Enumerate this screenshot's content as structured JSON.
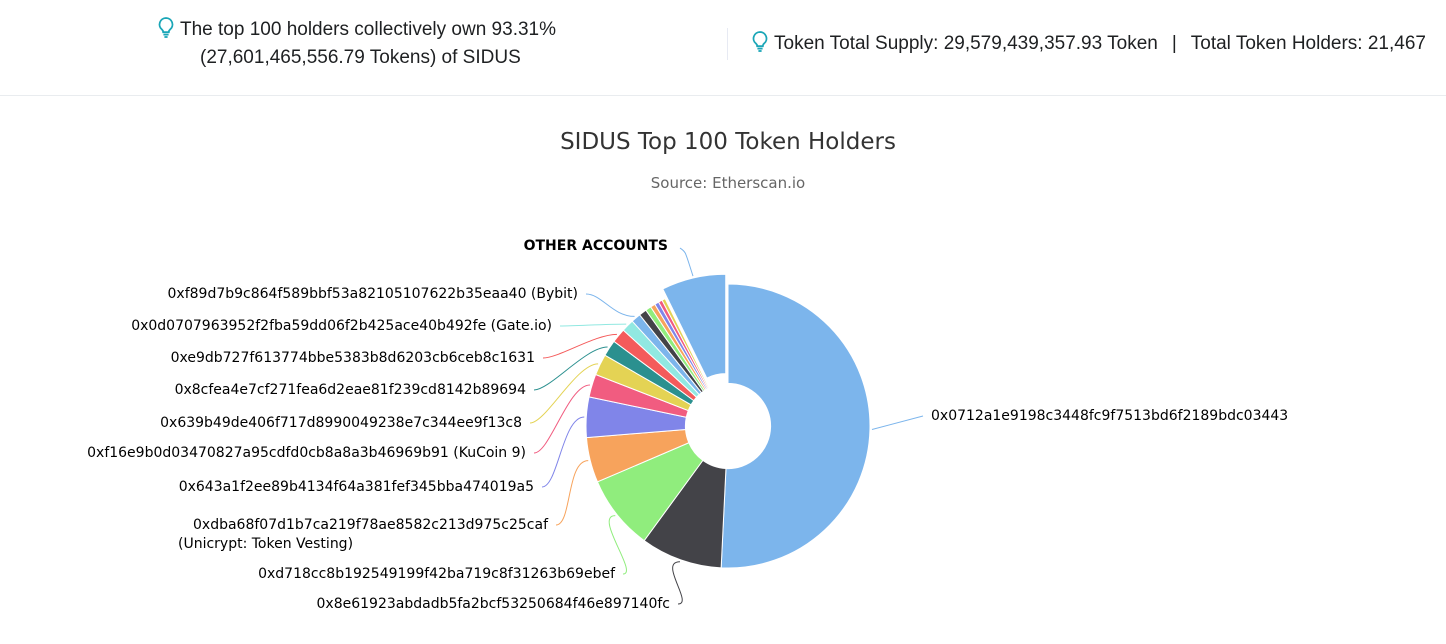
{
  "summary": {
    "holders_line1": "The top 100 holders collectively own 93.31%",
    "holders_line2": "(27,601,465,556.79 Tokens) of SIDUS",
    "supply": "Token Total Supply: 29,579,439,357.93 Token",
    "separator": "|",
    "holders_count": "Total Token Holders: 21,467"
  },
  "icons": {
    "bulb": "lightbulb-icon",
    "bulb_color": "#1aa6b7"
  },
  "chart_data": {
    "type": "pie",
    "title": "SIDUS Top 100 Token Holders",
    "subtitle": "Source: Etherscan.io",
    "inner_radius_ratio": 0.3,
    "slices": [
      {
        "name": "0x0712a1e9198c3448fc9f7513bd6f2189bdc03443",
        "value": 46.5,
        "color": "#7cb5ec",
        "label": true
      },
      {
        "name": "0x8e61923abdadb5fa2bcf53250684f46e897140fc",
        "value": 8.5,
        "color": "#434348",
        "label": true
      },
      {
        "name": "0xd718cc8b192549199f42ba719c8f31263b69ebef",
        "value": 7.8,
        "color": "#90ed7d",
        "label": true
      },
      {
        "name": "0xdba68f07d1b7ca219f78ae8582c213d975c25caf (Unicrypt: Token Vesting)",
        "value": 4.7,
        "color": "#f7a35c",
        "label": true
      },
      {
        "name": "0x643a1f2ee89b4134f64a381fef345bba474019a5",
        "value": 4.2,
        "color": "#8085e9",
        "label": true
      },
      {
        "name": "0xf16e9b0d03470827a95cdfd0cb8a8a3b46969b91 (KuCoin 9)",
        "value": 2.4,
        "color": "#f15c80",
        "label": true
      },
      {
        "name": "0x639b49de406f717d8990049238e7c344ee9f13c8",
        "value": 2.2,
        "color": "#e4d354",
        "label": true
      },
      {
        "name": "0x8cfea4e7cf271fea6d2eae81f239cd8142b89694",
        "value": 1.7,
        "color": "#2b908f",
        "label": true
      },
      {
        "name": "0xe9db727f613774bbe5383b8d6203cb6ceb8c1631",
        "value": 1.5,
        "color": "#f45b5b",
        "label": true
      },
      {
        "name": "0x0d0707963952f2fba59dd06f2b425ace40b492fe (Gate.io)",
        "value": 1.3,
        "color": "#91e8e1",
        "label": true
      },
      {
        "name": "0xf89d7b9c864f589bbf53a82105107622b35eaa40 (Bybit)",
        "value": 1.0,
        "color": "#7cb5ec",
        "label": true
      },
      {
        "name": "",
        "value": 0.8,
        "color": "#434348",
        "label": false
      },
      {
        "name": "",
        "value": 0.6,
        "color": "#90ed7d",
        "label": false
      },
      {
        "name": "",
        "value": 0.5,
        "color": "#f7a35c",
        "label": false
      },
      {
        "name": "",
        "value": 0.45,
        "color": "#8085e9",
        "label": false
      },
      {
        "name": "",
        "value": 0.4,
        "color": "#f15c80",
        "label": false
      },
      {
        "name": "",
        "value": 0.35,
        "color": "#e4d354",
        "label": false
      },
      {
        "name": "OTHER ACCOUNTS",
        "value": 6.69,
        "color": "#7cb5ec",
        "label": true,
        "sliced": true
      }
    ]
  }
}
